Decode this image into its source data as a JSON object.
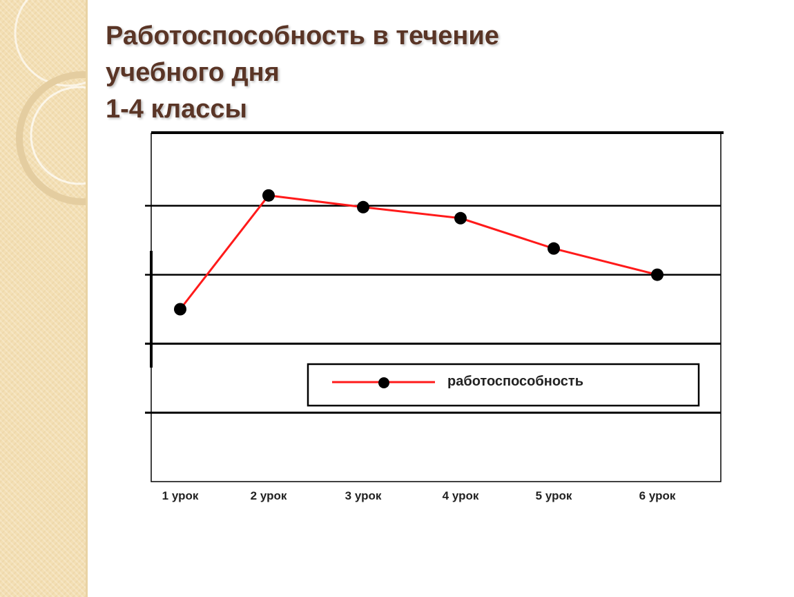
{
  "title": {
    "line1": "Работоспособность в течение",
    "line2": "учебного дня",
    "line3": "1-4 классы"
  },
  "colors": {
    "title": "#5a3526",
    "series_line": "#ff1a1a",
    "marker": "#000000",
    "panel": "#f3dfb4"
  },
  "chart_data": {
    "type": "line",
    "categories": [
      "1 урок",
      "2 урок",
      "3 урок",
      "4 урок",
      "5 урок",
      "6 урок"
    ],
    "series": [
      {
        "name": "работоспособность",
        "values": [
          2.5,
          4.15,
          3.98,
          3.82,
          3.38,
          3.0
        ]
      }
    ],
    "ylim": [
      0,
      5
    ],
    "grid": true,
    "legend": "inside-center-right",
    "xlabel": "",
    "ylabel": ""
  }
}
